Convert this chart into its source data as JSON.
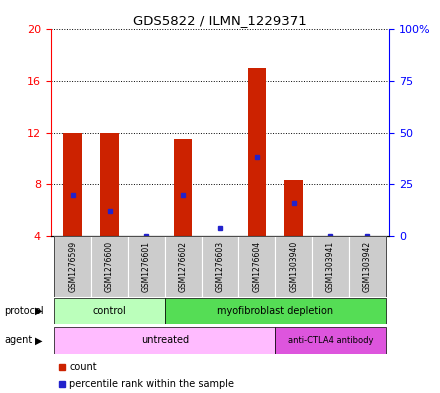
{
  "title": "GDS5822 / ILMN_1229371",
  "samples": [
    "GSM1276599",
    "GSM1276600",
    "GSM1276601",
    "GSM1276602",
    "GSM1276603",
    "GSM1276604",
    "GSM1303940",
    "GSM1303941",
    "GSM1303942"
  ],
  "count_values": [
    12.0,
    12.0,
    4.0,
    11.5,
    4.0,
    17.0,
    8.3,
    4.0,
    4.0
  ],
  "percentile_values": [
    20.0,
    12.0,
    0.0,
    20.0,
    4.0,
    38.0,
    16.0,
    0.0,
    0.0
  ],
  "ylim_left": [
    4,
    20
  ],
  "ylim_right": [
    0,
    100
  ],
  "yticks_left": [
    4,
    8,
    12,
    16,
    20
  ],
  "yticks_right": [
    0,
    25,
    50,
    75,
    100
  ],
  "ytick_labels_left": [
    "4",
    "8",
    "12",
    "16",
    "20"
  ],
  "ytick_labels_right": [
    "0",
    "25",
    "50",
    "75",
    "100%"
  ],
  "bar_color": "#cc2200",
  "dot_color": "#2222cc",
  "bar_width": 0.5,
  "protocol_control_count": 3,
  "agent_untreated_count": 6,
  "protocol_control_color": "#bbffbb",
  "protocol_myofib_color": "#55dd55",
  "agent_untreated_color": "#ffbbff",
  "agent_antictla_color": "#dd55dd",
  "sample_area_color": "#cccccc",
  "legend_count_color": "#cc2200",
  "legend_dot_color": "#2222cc"
}
